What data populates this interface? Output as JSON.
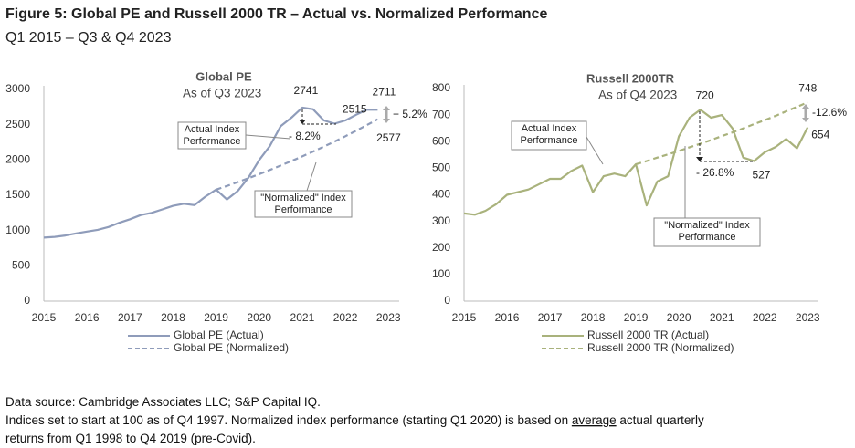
{
  "title": "Figure 5: Global PE and Russell 2000 TR – Actual vs. Normalized Performance",
  "subtitle": "Q1 2015 – Q3 & Q4 2023",
  "chart_data": [
    {
      "type": "line",
      "title": "Global PE",
      "subtitle": "As of Q3 2023",
      "x": [
        2015,
        2015.25,
        2015.5,
        2015.75,
        2016,
        2016.25,
        2016.5,
        2016.75,
        2017,
        2017.25,
        2017.5,
        2017.75,
        2018,
        2018.25,
        2018.5,
        2018.75,
        2019,
        2019.25,
        2019.5,
        2019.75,
        2020,
        2020.25,
        2020.5,
        2020.75,
        2021,
        2021.25,
        2021.5,
        2021.75,
        2022,
        2022.25,
        2022.5,
        2022.75
      ],
      "series": [
        {
          "name": "Global PE (Actual)",
          "color": "#8f9cba",
          "line_style": "solid",
          "values": [
            900,
            910,
            930,
            960,
            985,
            1010,
            1050,
            1110,
            1160,
            1220,
            1250,
            1300,
            1350,
            1380,
            1360,
            1480,
            1580,
            1440,
            1560,
            1750,
            2000,
            2200,
            2480,
            2600,
            2741,
            2720,
            2560,
            2515,
            2560,
            2640,
            2711,
            2711
          ]
        },
        {
          "name": "Global PE (Normalized)",
          "color": "#8f9cba",
          "line_style": "dashed",
          "values": [
            null,
            null,
            null,
            null,
            null,
            null,
            null,
            null,
            null,
            null,
            null,
            null,
            null,
            null,
            null,
            null,
            1580,
            1632,
            1686,
            1742,
            1800,
            1860,
            1921,
            1985,
            2051,
            2119,
            2189,
            2262,
            2337,
            2414,
            2494,
            2577
          ]
        }
      ],
      "xlim": [
        2015,
        2023.25
      ],
      "xticks": [
        2015,
        2016,
        2017,
        2018,
        2019,
        2020,
        2021,
        2022,
        2023
      ],
      "ylim": [
        0,
        3000
      ],
      "yticks": [
        0,
        500,
        1000,
        1500,
        2000,
        2500,
        3000
      ],
      "grid": false,
      "annotations": [
        "- 8.2%",
        "+ 5.2%"
      ],
      "callouts": [
        [
          "Actual Index",
          "Performance"
        ],
        [
          "\"Normalized\" Index",
          "Performance"
        ]
      ]
    },
    {
      "type": "line",
      "title": "Russell 2000TR",
      "subtitle": "As of Q4 2023",
      "x": [
        2015,
        2015.25,
        2015.5,
        2015.75,
        2016,
        2016.25,
        2016.5,
        2016.75,
        2017,
        2017.25,
        2017.5,
        2017.75,
        2018,
        2018.25,
        2018.5,
        2018.75,
        2019,
        2019.25,
        2019.5,
        2019.75,
        2020,
        2020.25,
        2020.5,
        2020.75,
        2021,
        2021.25,
        2021.5,
        2021.75,
        2022,
        2022.25,
        2022.5,
        2022.75,
        2023
      ],
      "series": [
        {
          "name": "Russell 2000 TR (Actual)",
          "color": "#a9b27c",
          "line_style": "solid",
          "values": [
            330,
            325,
            340,
            365,
            400,
            410,
            420,
            440,
            460,
            460,
            490,
            510,
            410,
            470,
            480,
            470,
            515,
            360,
            450,
            470,
            620,
            690,
            720,
            690,
            700,
            650,
            540,
            527,
            560,
            580,
            610,
            575,
            654
          ]
        },
        {
          "name": "Russell 2000 TR (Normalized)",
          "color": "#a9b27c",
          "line_style": "dashed",
          "values": [
            null,
            null,
            null,
            null,
            null,
            null,
            null,
            null,
            null,
            null,
            null,
            null,
            null,
            null,
            null,
            null,
            515,
            527,
            540,
            552,
            565,
            579,
            592,
            606,
            621,
            635,
            650,
            666,
            681,
            697,
            714,
            731,
            748
          ]
        }
      ],
      "xlim": [
        2015,
        2023.25
      ],
      "xticks": [
        2015,
        2016,
        2017,
        2018,
        2019,
        2020,
        2021,
        2022,
        2023
      ],
      "ylim": [
        0,
        800
      ],
      "yticks": [
        0,
        100,
        200,
        300,
        400,
        500,
        600,
        700,
        800
      ],
      "grid": false,
      "annotations": [
        "- 26.8%",
        "-12.6%"
      ],
      "callouts": [
        [
          "Actual Index",
          "Performance"
        ],
        [
          "\"Normalized\" Index",
          "Performance"
        ]
      ]
    }
  ],
  "notes": [
    [
      "Data source: Cambridge Associates LLC; S&P Capital IQ."
    ],
    [
      "Indices set to start at 100 as of Q4 1997. Normalized index performance (starting Q1 2020) is based on ",
      "average",
      " actual quarterly"
    ],
    [
      "returns from Q1 1998 to Q4 2019 (pre-Covid)."
    ]
  ]
}
